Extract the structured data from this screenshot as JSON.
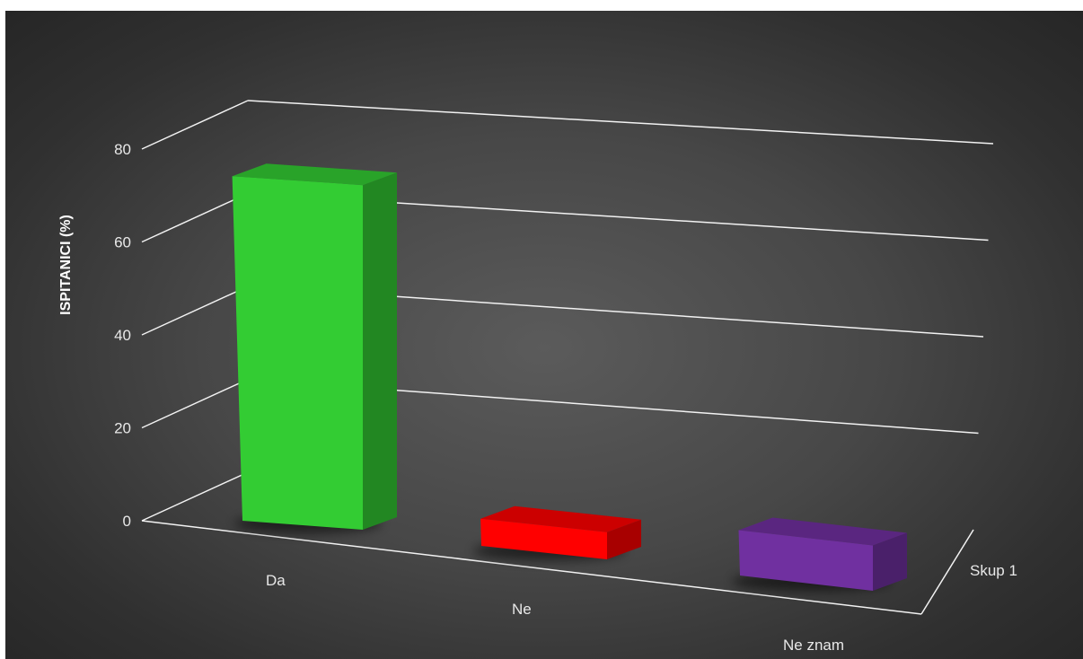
{
  "chart_data": {
    "type": "bar",
    "title": "",
    "xlabel": "",
    "ylabel": "ISPITANICI (%)",
    "categories": [
      "Da",
      "Ne",
      "Ne znam"
    ],
    "series": [
      {
        "name": "Skup 1",
        "values": [
          76,
          6,
          10
        ],
        "colors": [
          "#33cc33",
          "#ff0000",
          "#7030a0"
        ]
      }
    ],
    "ylim": [
      0,
      80
    ],
    "yticks": [
      "0",
      "20",
      "40",
      "60",
      "80"
    ],
    "grid": true,
    "style": "3d-column"
  }
}
